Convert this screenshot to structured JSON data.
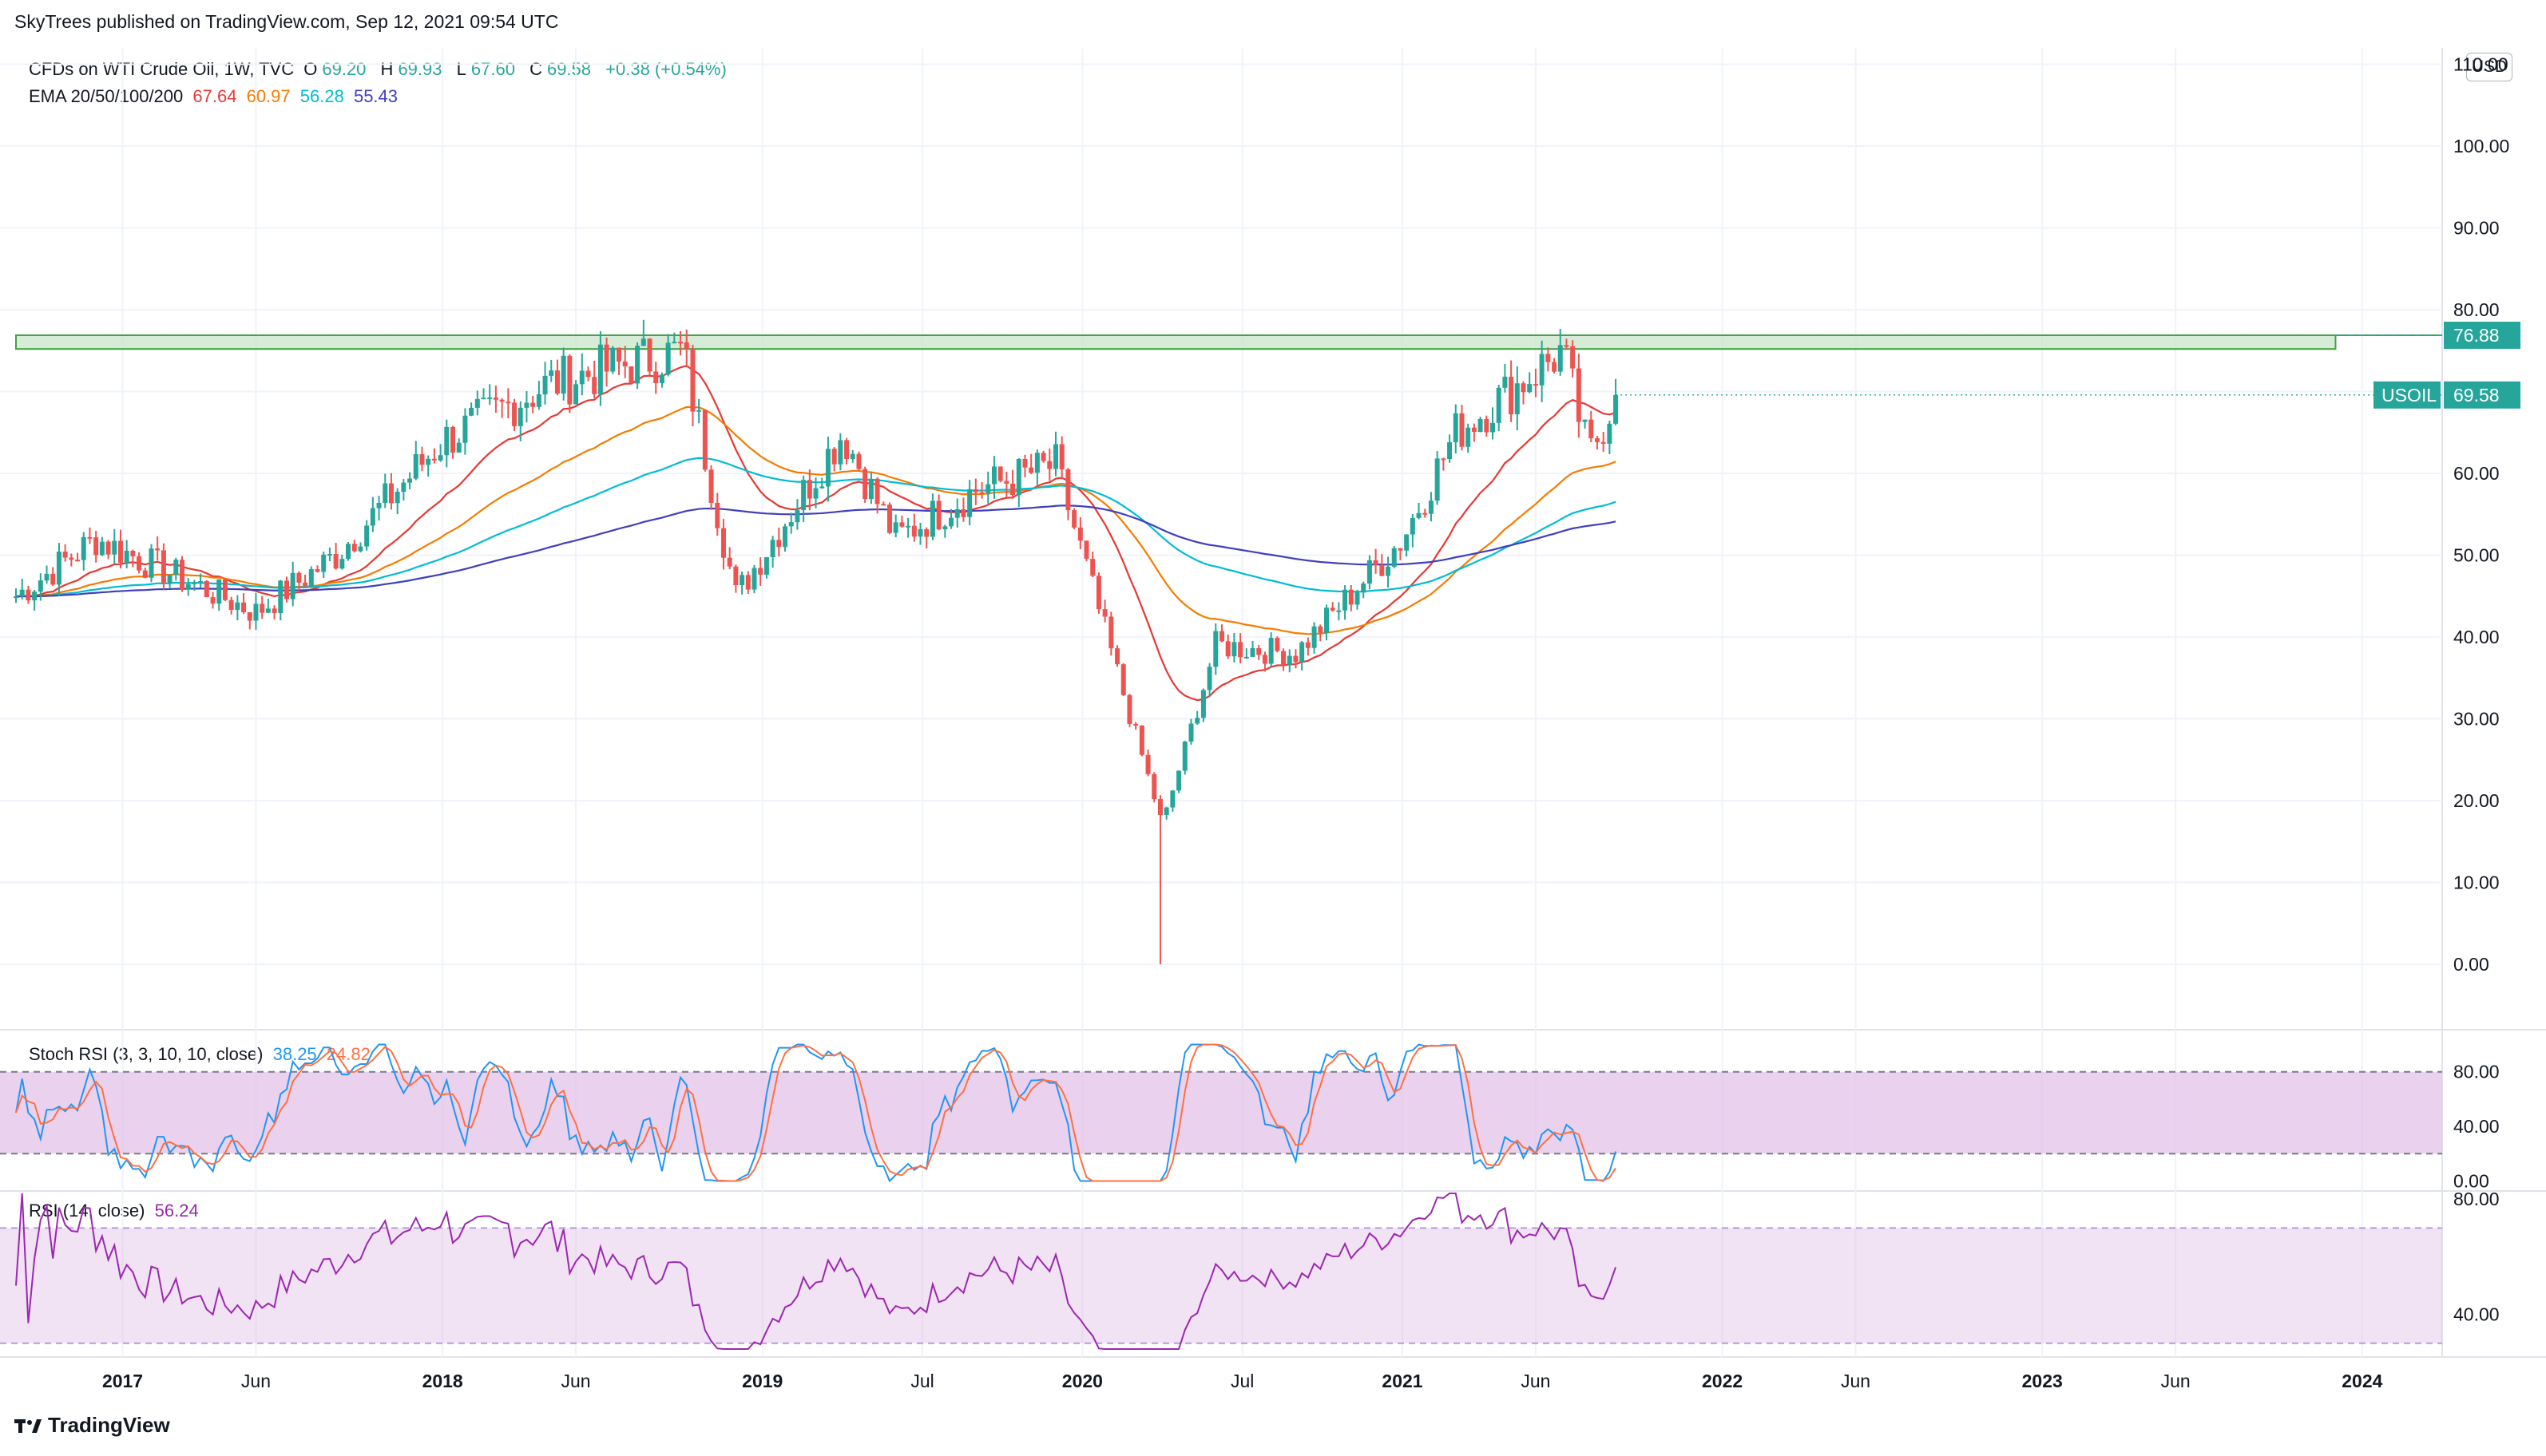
{
  "header": {
    "publisher": "SkyTrees published on TradingView.com, Sep 12, 2021 09:54 UTC",
    "brand": "TradingView",
    "currency_button": "USD"
  },
  "legend": {
    "symbol": "CFDs on WTI Crude Oil, 1W, TVC",
    "o_label": "O",
    "o_value": "69.20",
    "h_label": "H",
    "h_value": "69.93",
    "l_label": "L",
    "l_value": "67.60",
    "c_label": "C",
    "c_value": "69.58",
    "change": "+0.38 (+0.54%)",
    "ema_label": "EMA 20/50/100/200",
    "ema_values": [
      "67.64",
      "60.97",
      "56.28",
      "55.43"
    ],
    "stoch_label": "Stoch RSI (3, 3, 10, 10, close)",
    "stoch_values": [
      "38.25",
      "24.82"
    ],
    "rsi_label": "RSI (14, close)",
    "rsi_value": "56.24"
  },
  "colors": {
    "up": "#26a69a",
    "down": "#ef5350",
    "ema20": "#e53935",
    "ema50": "#f57c00",
    "ema100": "#00bcd4",
    "ema200": "#3f3fbf",
    "trend_blue": "#2196f3",
    "trend_red": "#b71c1c",
    "zone_fill": "#c8e6c9",
    "zone_stroke": "#43a047",
    "stoch_k": "#2196f3",
    "stoch_d": "#ff7043",
    "rsi": "#9c27b0",
    "band_fill": "#e1bee7"
  },
  "chart_data": [
    {
      "type": "candlestick",
      "title": "CFDs on WTI Crude Oil, 1W, TVC",
      "y_axis": {
        "ticks": [
          "0.00",
          "10.00",
          "20.00",
          "30.00",
          "40.00",
          "50.00",
          "60.00",
          "70.00",
          "80.00",
          "90.00",
          "100.00",
          "110.00"
        ],
        "ylim": [
          -8,
          112
        ]
      },
      "x_axis": {
        "ticks": [
          "2017",
          "Jun",
          "2018",
          "Jun",
          "2019",
          "Jul",
          "2020",
          "Jul",
          "2021",
          "Jun",
          "2022",
          "Jun",
          "2023",
          "Jun",
          "2024"
        ],
        "range": [
          "2016-09",
          "2024-04"
        ]
      },
      "price_tags": [
        {
          "label": "",
          "value": "76.88",
          "price": 76.88
        },
        {
          "label": "USOIL",
          "value": "69.58",
          "price": 69.58
        }
      ],
      "resistance_zone": [
        75.2,
        76.88
      ],
      "series": [
        {
          "name": "EMA 20",
          "last": 67.64
        },
        {
          "name": "EMA 50",
          "last": 60.97
        },
        {
          "name": "EMA 100",
          "last": 56.28
        },
        {
          "name": "EMA 200",
          "last": 55.43
        }
      ],
      "weekly_closes_keypoints": [
        [
          "2016-09",
          45
        ],
        [
          "2016-12",
          52
        ],
        [
          "2017-06",
          43
        ],
        [
          "2017-09",
          50
        ],
        [
          "2018-01",
          64
        ],
        [
          "2018-05",
          71
        ],
        [
          "2018-10",
          75
        ],
        [
          "2018-12",
          45
        ],
        [
          "2019-04",
          65
        ],
        [
          "2019-06",
          52
        ],
        [
          "2019-09",
          58
        ],
        [
          "2019-12",
          61
        ],
        [
          "2020-03",
          28
        ],
        [
          "2020-04",
          17
        ],
        [
          "2020-06",
          39
        ],
        [
          "2020-09",
          38
        ],
        [
          "2021-01",
          52
        ],
        [
          "2021-03",
          65
        ],
        [
          "2021-07",
          75
        ],
        [
          "2021-08",
          62
        ],
        [
          "2021-09",
          69.58
        ]
      ]
    },
    {
      "type": "line",
      "title": "Stoch RSI (3, 3, 10, 10, close)",
      "y_axis": {
        "ticks": [
          "0.00",
          "40.00",
          "80.00"
        ],
        "ylim": [
          -5,
          105
        ],
        "band": [
          20,
          80
        ]
      },
      "series": [
        {
          "name": "K",
          "last": 38.25
        },
        {
          "name": "D",
          "last": 24.82
        }
      ]
    },
    {
      "type": "line",
      "title": "RSI (14, close)",
      "y_axis": {
        "ticks": [
          "40.00",
          "80.00"
        ],
        "ylim": [
          28,
          82
        ],
        "band": [
          30,
          70
        ]
      },
      "series": [
        {
          "name": "RSI",
          "last": 56.24
        }
      ]
    }
  ]
}
